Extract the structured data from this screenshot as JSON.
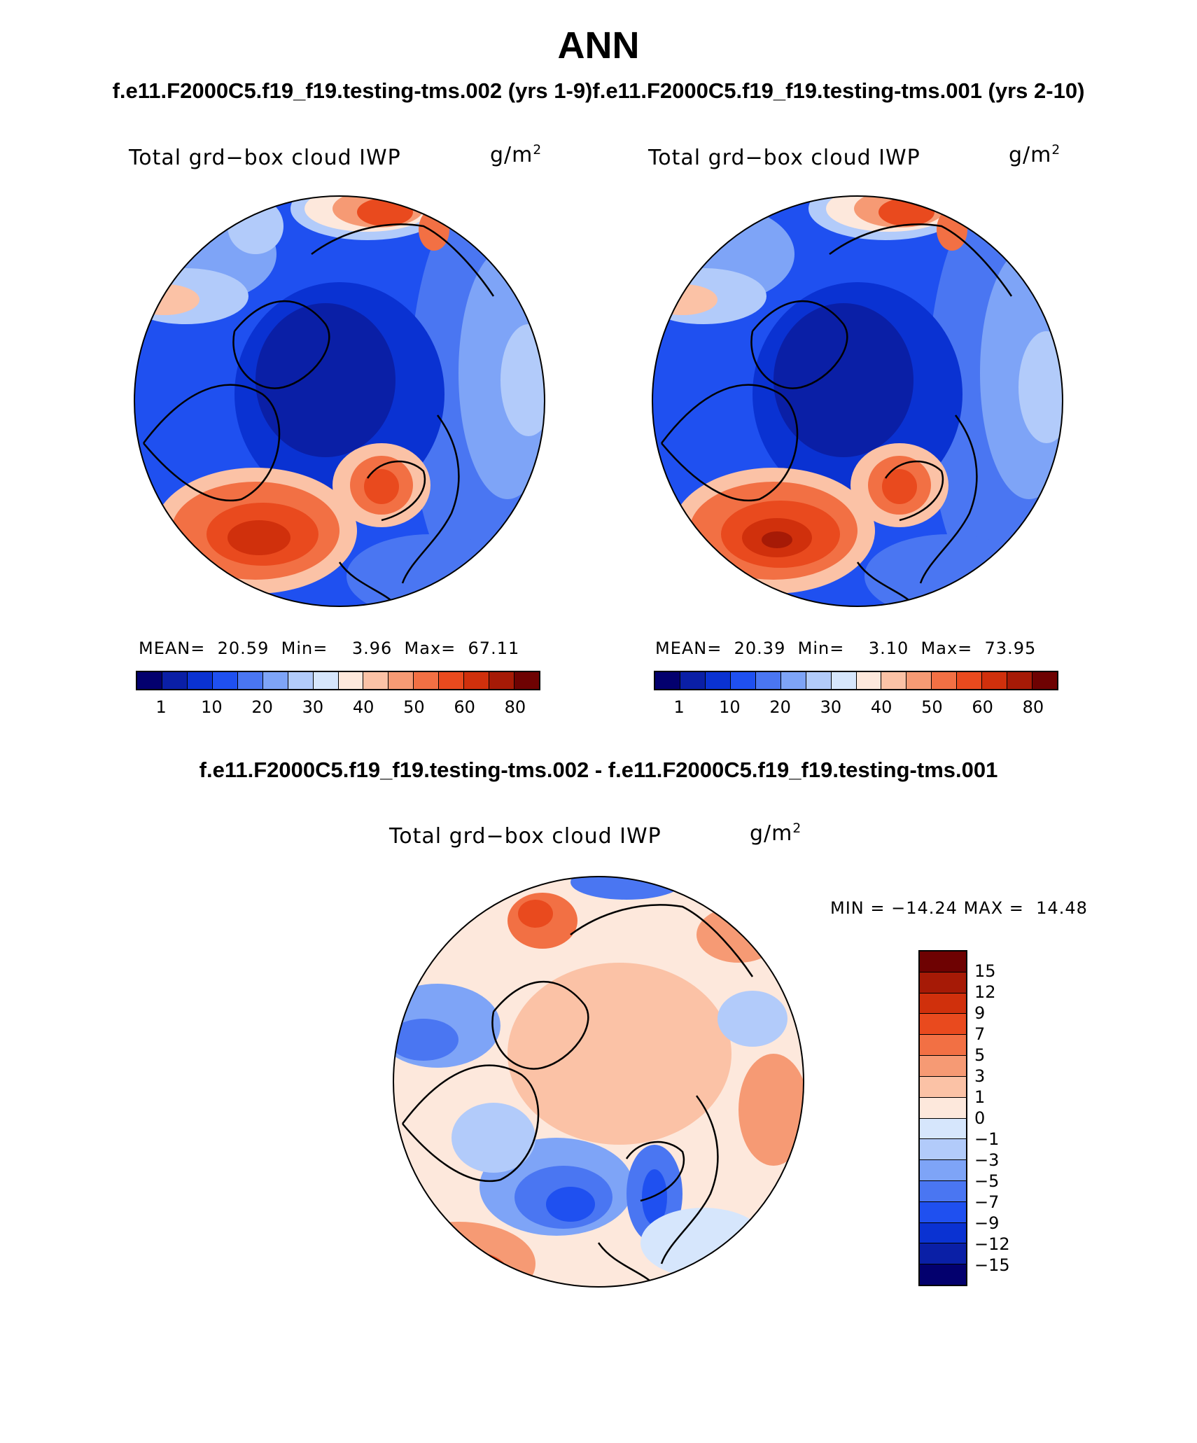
{
  "title": "ANN",
  "subtitle_top": "f.e11.F2000C5.f19_f19.testing-tms.002 (yrs 1-9)f.e11.F2000C5.f19_f19.testing-tms.001 (yrs 2-10)",
  "subtitle_diff": "f.e11.F2000C5.f19_f19.testing-tms.002 - f.e11.F2000C5.f19_f19.testing-tms.001",
  "variable": "Total grd−box cloud IWP",
  "units_base": "g/m",
  "units_exp": "2",
  "panels": [
    {
      "mean_label": "MEAN=",
      "mean": "20.59",
      "min_label": "Min=",
      "min": "3.96",
      "max_label": "Max=",
      "max": "67.11"
    },
    {
      "mean_label": "MEAN=",
      "mean": "20.39",
      "min_label": "Min=",
      "min": "3.10",
      "max_label": "Max=",
      "max": "73.95"
    }
  ],
  "diff": {
    "min_label": "MIN = ",
    "min": "−14.24",
    "max_label": "MAX = ",
    "max": "14.48"
  },
  "colorbar_main": {
    "colors": [
      "#03006e",
      "#0a1fa6",
      "#0a32d2",
      "#1f50f0",
      "#4a76f2",
      "#7ea4f7",
      "#b2cbfa",
      "#d6e6fc",
      "#fde8dc",
      "#fbc2a6",
      "#f69a74",
      "#f27044",
      "#e94a1e",
      "#d0300c",
      "#a61a06",
      "#6e0202"
    ],
    "labels": [
      "1",
      "10",
      "20",
      "30",
      "40",
      "50",
      "60",
      "80"
    ]
  },
  "colorbar_diff": {
    "colors": [
      "#6e0202",
      "#a61a06",
      "#d0300c",
      "#e94a1e",
      "#f27044",
      "#f69a74",
      "#fbc2a6",
      "#fde8dc",
      "#d6e6fc",
      "#b2cbfa",
      "#7ea4f7",
      "#4a76f2",
      "#1f50f0",
      "#0a32d2",
      "#0a1fa6",
      "#03006e"
    ],
    "labels": [
      "15",
      "12",
      "9",
      "7",
      "5",
      "3",
      "1",
      "0",
      "−1",
      "−3",
      "−5",
      "−7",
      "−9",
      "−12",
      "−15"
    ]
  }
}
